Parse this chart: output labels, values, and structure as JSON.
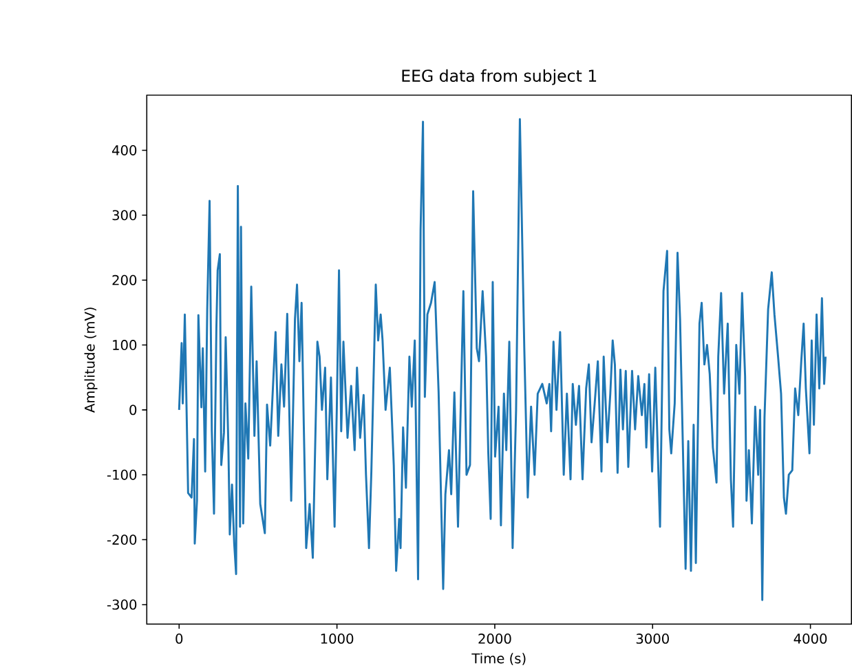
{
  "chart_data": {
    "type": "line",
    "title": "EEG data from subject 1",
    "xlabel": "Time (s)",
    "ylabel": "Amplitude (mV)",
    "color": "#1f77b4",
    "xlim": [
      -205,
      4260
    ],
    "ylim": [
      -330,
      485
    ],
    "xticks": [
      0,
      1000,
      2000,
      3000,
      4000
    ],
    "yticks": [
      -300,
      -200,
      -100,
      0,
      100,
      200,
      300,
      400
    ],
    "x": [
      0,
      16,
      23,
      36,
      57,
      79,
      94,
      99,
      113,
      122,
      141,
      150,
      165,
      178,
      193,
      207,
      221,
      236,
      244,
      258,
      267,
      284,
      295,
      312,
      321,
      335,
      349,
      361,
      372,
      386,
      392,
      406,
      420,
      438,
      457,
      477,
      491,
      514,
      543,
      557,
      577,
      611,
      628,
      648,
      665,
      685,
      710,
      734,
      747,
      762,
      776,
      790,
      805,
      827,
      847,
      876,
      890,
      905,
      925,
      939,
      962,
      970,
      985,
      999,
      1013,
      1027,
      1041,
      1067,
      1090,
      1112,
      1127,
      1147,
      1169,
      1184,
      1203,
      1218,
      1246,
      1261,
      1277,
      1289,
      1308,
      1335,
      1360,
      1375,
      1394,
      1403,
      1419,
      1437,
      1459,
      1474,
      1493,
      1514,
      1530,
      1545,
      1557,
      1573,
      1596,
      1619,
      1644,
      1673,
      1687,
      1710,
      1724,
      1744,
      1767,
      1801,
      1821,
      1843,
      1863,
      1886,
      1900,
      1923,
      1945,
      1959,
      1974,
      1987,
      2002,
      2024,
      2039,
      2058,
      2073,
      2092,
      2113,
      2135,
      2159,
      2187,
      2209,
      2230,
      2252,
      2272,
      2301,
      2329,
      2346,
      2357,
      2372,
      2391,
      2414,
      2437,
      2457,
      2480,
      2494,
      2514,
      2534,
      2556,
      2579,
      2596,
      2613,
      2633,
      2653,
      2676,
      2690,
      2713,
      2732,
      2747,
      2761,
      2778,
      2796,
      2812,
      2830,
      2846,
      2870,
      2889,
      2909,
      2932,
      2948,
      2960,
      2978,
      2997,
      3017,
      3047,
      3069,
      3092,
      3106,
      3118,
      3140,
      3158,
      3174,
      3192,
      3209,
      3226,
      3243,
      3260,
      3274,
      3297,
      3311,
      3328,
      3345,
      3362,
      3382,
      3405,
      3416,
      3434,
      3453,
      3476,
      3496,
      3510,
      3530,
      3550,
      3567,
      3586,
      3595,
      3610,
      3629,
      3650,
      3669,
      3681,
      3695,
      3709,
      3732,
      3755,
      3772,
      3795,
      3814,
      3832,
      3845,
      3863,
      3885,
      3903,
      3923,
      3942,
      3957,
      3971,
      3994,
      4008,
      4022,
      4039,
      4056,
      4073,
      4087,
      4096
    ],
    "values": [
      0,
      103,
      10,
      147,
      -128,
      -135,
      -45,
      -206,
      -140,
      146,
      4,
      95,
      -95,
      155,
      322,
      -32,
      -160,
      125,
      215,
      240,
      -85,
      -35,
      112,
      -55,
      -192,
      -115,
      -206,
      -253,
      345,
      -180,
      282,
      -175,
      10,
      -75,
      190,
      -40,
      75,
      -145,
      -190,
      8,
      -55,
      120,
      -40,
      70,
      5,
      148,
      -140,
      140,
      193,
      75,
      165,
      -25,
      -213,
      -145,
      -228,
      105,
      82,
      0,
      65,
      -107,
      50,
      -30,
      -180,
      2,
      215,
      -33,
      105,
      -43,
      37,
      -62,
      65,
      -43,
      23,
      -100,
      -213,
      -95,
      193,
      107,
      147,
      107,
      0,
      65,
      -85,
      -248,
      -168,
      -213,
      -27,
      -120,
      82,
      5,
      107,
      -261,
      278,
      444,
      20,
      147,
      165,
      197,
      28,
      -276,
      -130,
      -62,
      -130,
      27,
      -180,
      183,
      -100,
      -85,
      337,
      95,
      75,
      183,
      82,
      -67,
      -168,
      197,
      -72,
      5,
      -178,
      25,
      -62,
      105,
      -213,
      0,
      448,
      95,
      -135,
      5,
      -100,
      25,
      40,
      10,
      40,
      -33,
      105,
      0,
      120,
      -100,
      25,
      -107,
      40,
      -23,
      37,
      -107,
      33,
      70,
      -50,
      10,
      75,
      -95,
      82,
      -50,
      25,
      107,
      70,
      -97,
      62,
      -30,
      60,
      -88,
      60,
      -30,
      52,
      -8,
      40,
      -58,
      55,
      -95,
      65,
      -180,
      183,
      245,
      -30,
      -67,
      10,
      242,
      140,
      -58,
      -245,
      -48,
      -248,
      -23,
      -236,
      133,
      165,
      70,
      100,
      55,
      -58,
      -112,
      82,
      180,
      25,
      133,
      -107,
      -180,
      100,
      25,
      180,
      52,
      -140,
      -62,
      -175,
      5,
      -100,
      0,
      -293,
      -12,
      155,
      212,
      147,
      82,
      25,
      -135,
      -160,
      -100,
      -93,
      33,
      -8,
      75,
      133,
      33,
      -67,
      107,
      -23,
      147,
      33,
      172,
      40,
      82
    ]
  }
}
